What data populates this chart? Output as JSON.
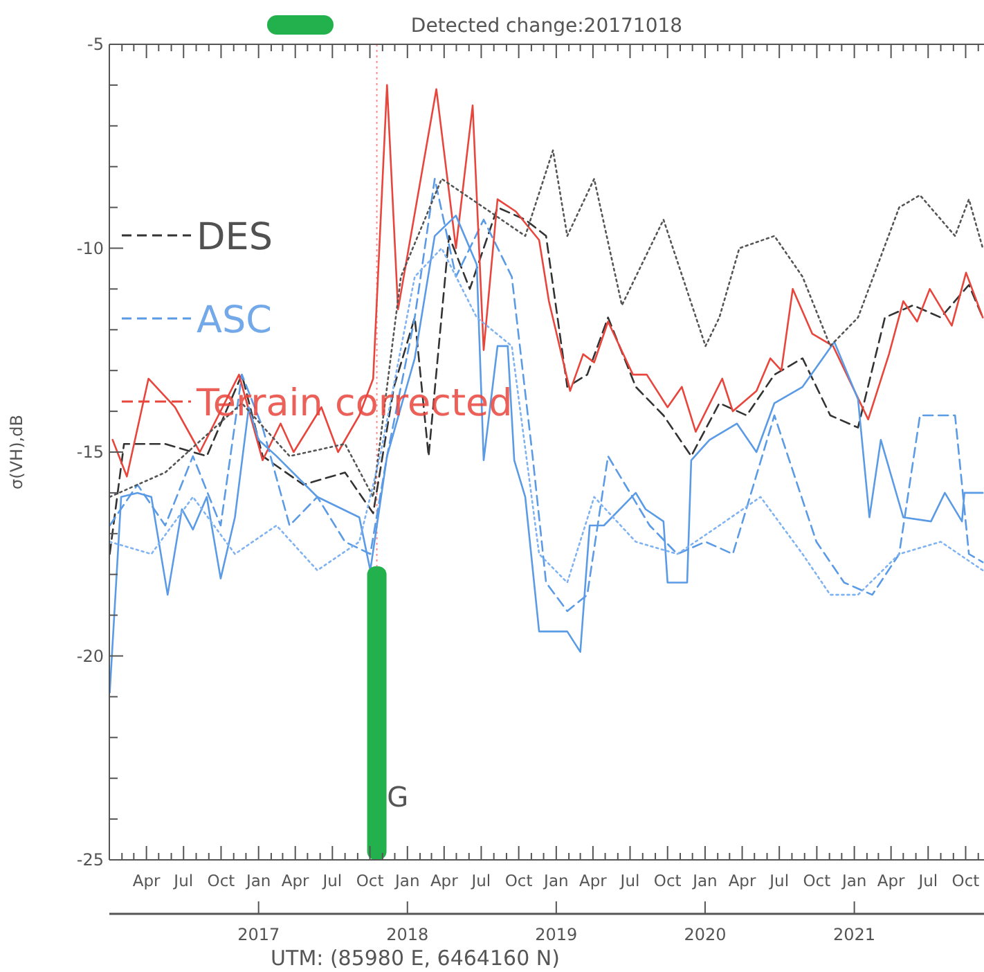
{
  "chart_data": {
    "type": "line",
    "title": "Detected change:20171018",
    "xlabel": "UTM: (85980 E, 6464160 N)",
    "ylabel": "σ(VH),dB",
    "legend": "left",
    "grid": false,
    "xlim": [
      "2016-01-01",
      "2021-11-15"
    ],
    "ylim": [
      -25,
      -5
    ],
    "yticks": [
      -25,
      {
        "value": -24,
        "label": null
      },
      {
        "value": -23,
        "label": null
      },
      {
        "value": -22,
        "label": null
      },
      {
        "value": -21,
        "label": null
      },
      -20,
      {
        "value": -19,
        "label": null
      },
      {
        "value": -18,
        "label": null
      },
      {
        "value": -17,
        "label": null
      },
      {
        "value": -16,
        "label": null
      },
      -15,
      {
        "value": -14,
        "label": null
      },
      {
        "value": -13,
        "label": null
      },
      {
        "value": -12,
        "label": null
      },
      {
        "value": -11,
        "label": null
      },
      -10,
      {
        "value": -9,
        "label": null
      },
      {
        "value": -8,
        "label": null
      },
      {
        "value": -7,
        "label": null
      },
      {
        "value": -6,
        "label": null
      },
      -5
    ],
    "xticks": [
      {
        "value": "2016-02-01",
        "label": null
      },
      {
        "value": "2016-03-01",
        "label": null
      },
      {
        "value": "2016-04-01",
        "label": "Apr"
      },
      {
        "value": "2016-05-01",
        "label": null
      },
      {
        "value": "2016-06-01",
        "label": null
      },
      {
        "value": "2016-07-01",
        "label": "Jul"
      },
      {
        "value": "2016-08-01",
        "label": null
      },
      {
        "value": "2016-09-01",
        "label": null
      },
      {
        "value": "2016-10-01",
        "label": "Oct"
      },
      {
        "value": "2016-11-01",
        "label": null
      },
      {
        "value": "2016-12-01",
        "label": null
      },
      {
        "value": "2017-01-01",
        "label": "Jan"
      },
      {
        "value": "2017-02-01",
        "label": null
      },
      {
        "value": "2017-03-01",
        "label": null
      },
      {
        "value": "2017-04-01",
        "label": "Apr"
      },
      {
        "value": "2017-05-01",
        "label": null
      },
      {
        "value": "2017-06-01",
        "label": null
      },
      {
        "value": "2017-07-01",
        "label": "Jul"
      },
      {
        "value": "2017-08-01",
        "label": null
      },
      {
        "value": "2017-09-01",
        "label": null
      },
      {
        "value": "2017-10-01",
        "label": "Oct"
      },
      {
        "value": "2017-11-01",
        "label": null
      },
      {
        "value": "2017-12-01",
        "label": null
      },
      {
        "value": "2018-01-01",
        "label": "Jan"
      },
      {
        "value": "2018-02-01",
        "label": null
      },
      {
        "value": "2018-03-01",
        "label": null
      },
      {
        "value": "2018-04-01",
        "label": "Apr"
      },
      {
        "value": "2018-05-01",
        "label": null
      },
      {
        "value": "2018-06-01",
        "label": null
      },
      {
        "value": "2018-07-01",
        "label": "Jul"
      },
      {
        "value": "2018-08-01",
        "label": null
      },
      {
        "value": "2018-09-01",
        "label": null
      },
      {
        "value": "2018-10-01",
        "label": "Oct"
      },
      {
        "value": "2018-11-01",
        "label": null
      },
      {
        "value": "2018-12-01",
        "label": null
      },
      {
        "value": "2019-01-01",
        "label": "Jan"
      },
      {
        "value": "2019-02-01",
        "label": null
      },
      {
        "value": "2019-03-01",
        "label": null
      },
      {
        "value": "2019-04-01",
        "label": "Apr"
      },
      {
        "value": "2019-05-01",
        "label": null
      },
      {
        "value": "2019-06-01",
        "label": null
      },
      {
        "value": "2019-07-01",
        "label": "Jul"
      },
      {
        "value": "2019-08-01",
        "label": null
      },
      {
        "value": "2019-09-01",
        "label": null
      },
      {
        "value": "2019-10-01",
        "label": "Oct"
      },
      {
        "value": "2019-11-01",
        "label": null
      },
      {
        "value": "2019-12-01",
        "label": null
      },
      {
        "value": "2020-01-01",
        "label": "Jan"
      },
      {
        "value": "2020-02-01",
        "label": null
      },
      {
        "value": "2020-03-01",
        "label": null
      },
      {
        "value": "2020-04-01",
        "label": "Apr"
      },
      {
        "value": "2020-05-01",
        "label": null
      },
      {
        "value": "2020-06-01",
        "label": null
      },
      {
        "value": "2020-07-01",
        "label": "Jul"
      },
      {
        "value": "2020-08-01",
        "label": null
      },
      {
        "value": "2020-09-01",
        "label": null
      },
      {
        "value": "2020-10-01",
        "label": "Oct"
      },
      {
        "value": "2020-11-01",
        "label": null
      },
      {
        "value": "2020-12-01",
        "label": null
      },
      {
        "value": "2021-01-01",
        "label": "Jan"
      },
      {
        "value": "2021-02-01",
        "label": null
      },
      {
        "value": "2021-03-01",
        "label": null
      },
      {
        "value": "2021-04-01",
        "label": "Apr"
      },
      {
        "value": "2021-05-01",
        "label": null
      },
      {
        "value": "2021-06-01",
        "label": null
      },
      {
        "value": "2021-07-01",
        "label": "Jul"
      },
      {
        "value": "2021-08-01",
        "label": null
      },
      {
        "value": "2021-09-01",
        "label": null
      },
      {
        "value": "2021-10-01",
        "label": "Oct"
      },
      {
        "value": "2021-11-01",
        "label": null
      }
    ],
    "x2lim": [
      "2016-01-01",
      "2021-11-15"
    ],
    "x2ticks": [
      {
        "value": "2017-01-01",
        "label": "2017"
      },
      {
        "value": "2018-01-01",
        "label": "2018"
      },
      {
        "value": "2019-01-01",
        "label": "2019"
      },
      {
        "value": "2020-01-01",
        "label": "2020"
      },
      {
        "value": "2021-01-01",
        "label": "2021"
      }
    ],
    "ref_lines": [
      {
        "axis": "x",
        "value": "2017-10-18",
        "color": "#ff8a8a",
        "line_style": "dotted"
      }
    ],
    "annotations": [
      {
        "text": "G",
        "x": "2017-11-12",
        "y": -23.5
      }
    ],
    "series": [
      {
        "name": "DES",
        "color": "#333333",
        "line_style": "dashed",
        "x": [
          "2016-01-02",
          "2016-02-06",
          "2016-05-17",
          "2016-08-27",
          "2016-11-21",
          "2017-01-11",
          "2017-04-21",
          "2017-08-01",
          "2017-10-09",
          "2017-11-29",
          "2018-01-19",
          "2018-02-22",
          "2018-04-13",
          "2018-06-03",
          "2018-08-10",
          "2018-10-17",
          "2018-12-07",
          "2019-01-28",
          "2019-03-18",
          "2019-05-08",
          "2019-07-15",
          "2019-09-21",
          "2019-11-28",
          "2020-02-05",
          "2020-04-12",
          "2020-06-19",
          "2020-08-27",
          "2020-11-03",
          "2021-01-10",
          "2021-03-17",
          "2021-05-25",
          "2021-08-01",
          "2021-10-09",
          "2021-11-12"
        ],
        "values": [
          -17.5,
          -14.8,
          -14.8,
          -15.1,
          -13.1,
          -15.1,
          -15.8,
          -15.5,
          -16.5,
          -13.4,
          -11.7,
          -15.1,
          -9.7,
          -11.0,
          -9.0,
          -9.3,
          -9.7,
          -13.4,
          -13.1,
          -11.7,
          -13.4,
          -14.1,
          -15.1,
          -13.8,
          -14.1,
          -13.1,
          -12.7,
          -14.1,
          -14.4,
          -11.7,
          -11.4,
          -11.7,
          -10.9,
          -11.7
        ]
      },
      {
        "name": "ASC",
        "color": "#5b9be6",
        "line_style": "dashed",
        "x": [
          "2016-01-02",
          "2016-03-10",
          "2016-05-17",
          "2016-07-24",
          "2016-09-30",
          "2016-11-21",
          "2017-01-11",
          "2017-03-18",
          "2017-05-25",
          "2017-08-01",
          "2017-10-02",
          "2017-11-12",
          "2018-01-19",
          "2018-03-09",
          "2018-04-30",
          "2018-07-07",
          "2018-09-14",
          "2018-11-04",
          "2018-12-07",
          "2019-01-28",
          "2019-03-18",
          "2019-05-08",
          "2019-08-18",
          "2019-10-25",
          "2020-01-02",
          "2020-03-09",
          "2020-06-19",
          "2020-09-30",
          "2020-12-07",
          "2021-02-14",
          "2021-04-21",
          "2021-06-11",
          "2021-09-05",
          "2021-10-09",
          "2021-11-12"
        ],
        "values": [
          -16.8,
          -15.8,
          -16.8,
          -15.1,
          -16.8,
          -13.1,
          -14.4,
          -16.8,
          -16.1,
          -17.2,
          -17.5,
          -15.1,
          -11.7,
          -8.3,
          -10.7,
          -9.3,
          -10.7,
          -15.1,
          -18.2,
          -18.9,
          -18.5,
          -15.1,
          -16.8,
          -17.5,
          -17.2,
          -17.5,
          -14.1,
          -17.2,
          -18.2,
          -18.5,
          -17.5,
          -14.1,
          -14.1,
          -17.5,
          -17.7
        ]
      },
      {
        "name": "Terrain corrected",
        "color": "#e8453c",
        "line_style": "solid",
        "x": [
          "2016-01-09",
          "2016-02-13",
          "2016-04-06",
          "2016-06-10",
          "2016-08-10",
          "2016-11-14",
          "2017-01-11",
          "2017-02-24",
          "2017-03-28",
          "2017-06-04",
          "2017-07-15",
          "2017-09-05",
          "2017-10-09",
          "2017-11-12",
          "2017-12-09",
          "2018-03-13",
          "2018-04-30",
          "2018-06-10",
          "2018-07-07",
          "2018-08-10",
          "2018-09-24",
          "2018-11-20",
          "2018-12-14",
          "2019-02-04",
          "2019-03-08",
          "2019-04-04",
          "2019-05-08",
          "2019-07-08",
          "2019-08-11",
          "2019-10-01",
          "2019-11-05",
          "2019-12-09",
          "2020-02-12",
          "2020-03-09",
          "2020-05-06",
          "2020-06-09",
          "2020-07-06",
          "2020-08-03",
          "2020-09-20",
          "2020-11-10",
          "2021-02-04",
          "2021-03-27",
          "2021-05-01",
          "2021-06-04",
          "2021-07-05",
          "2021-08-28",
          "2021-10-02",
          "2021-11-12"
        ],
        "values": [
          -14.7,
          -15.6,
          -13.2,
          -13.9,
          -15.0,
          -13.1,
          -15.2,
          -14.3,
          -15.0,
          -13.9,
          -15.0,
          -14.1,
          -13.2,
          -6.0,
          -11.5,
          -6.1,
          -10.0,
          -6.5,
          -12.5,
          -8.8,
          -9.1,
          -9.8,
          -11.3,
          -13.5,
          -12.6,
          -12.8,
          -11.8,
          -13.1,
          -13.1,
          -13.9,
          -13.4,
          -14.5,
          -13.2,
          -14.0,
          -13.5,
          -12.7,
          -13.0,
          -11.0,
          -12.1,
          -12.4,
          -14.2,
          -12.6,
          -11.3,
          -11.8,
          -11.0,
          -11.9,
          -10.6,
          -11.7
        ]
      },
      {
        "color": "#5b9be6",
        "line_style": "solid",
        "x": [
          "2016-01-02",
          "2016-01-30",
          "2016-03-10",
          "2016-04-13",
          "2016-05-23",
          "2016-06-27",
          "2016-07-24",
          "2016-08-27",
          "2016-09-30",
          "2016-11-04",
          "2016-12-08",
          "2017-01-01",
          "2017-02-14",
          "2017-05-25",
          "2017-09-05",
          "2017-10-02",
          "2017-11-12",
          "2018-01-19",
          "2018-03-09",
          "2018-04-30",
          "2018-06-20",
          "2018-07-07",
          "2018-08-10",
          "2018-09-04",
          "2018-09-20",
          "2018-10-17",
          "2018-11-20",
          "2019-01-28",
          "2019-03-01",
          "2019-03-24",
          "2019-04-28",
          "2019-07-15",
          "2019-08-08",
          "2019-09-21",
          "2019-10-01",
          "2019-11-18",
          "2019-11-28",
          "2020-01-12",
          "2020-03-19",
          "2020-05-06",
          "2020-06-19",
          "2020-08-27",
          "2020-11-13",
          "2021-01-10",
          "2021-02-07",
          "2021-03-07",
          "2021-05-01",
          "2021-07-08",
          "2021-08-11",
          "2021-09-22",
          "2021-09-28",
          "2021-11-12"
        ],
        "values": [
          -20.9,
          -16.1,
          -16.0,
          -16.1,
          -18.5,
          -16.4,
          -16.9,
          -16.1,
          -18.1,
          -16.6,
          -13.9,
          -14.7,
          -15.1,
          -16.1,
          -16.6,
          -17.9,
          -15.1,
          -12.7,
          -9.7,
          -9.2,
          -10.4,
          -15.2,
          -12.4,
          -12.4,
          -15.2,
          -16.1,
          -19.4,
          -19.4,
          -19.9,
          -16.8,
          -16.8,
          -16.0,
          -16.4,
          -16.7,
          -18.2,
          -18.2,
          -15.2,
          -14.7,
          -14.3,
          -15.0,
          -13.8,
          -13.4,
          -12.3,
          -13.7,
          -16.6,
          -14.7,
          -16.6,
          -16.7,
          -16.0,
          -16.7,
          -16.0,
          -16.0
        ]
      },
      {
        "color": "#555555",
        "line_style": "dotted",
        "x": [
          "2016-01-02",
          "2016-05-17",
          "2016-11-21",
          "2017-03-18",
          "2017-08-01",
          "2017-10-09",
          "2017-12-16",
          "2018-03-26",
          "2018-07-07",
          "2018-10-17",
          "2018-12-24",
          "2019-01-28",
          "2019-04-04",
          "2019-06-11",
          "2019-09-21",
          "2020-01-02",
          "2020-02-05",
          "2020-03-25",
          "2020-06-19",
          "2020-08-27",
          "2020-11-03",
          "2021-01-10",
          "2021-04-21",
          "2021-06-11",
          "2021-09-05",
          "2021-10-09",
          "2021-11-12"
        ],
        "values": [
          -16.1,
          -15.5,
          -13.8,
          -15.1,
          -14.8,
          -16.1,
          -10.7,
          -8.3,
          -9.0,
          -9.7,
          -7.6,
          -9.7,
          -8.3,
          -11.4,
          -9.3,
          -12.4,
          -11.7,
          -10.0,
          -9.7,
          -10.7,
          -12.4,
          -11.7,
          -9.0,
          -8.7,
          -9.7,
          -8.8,
          -10.0
        ]
      },
      {
        "color": "#7fb2f0",
        "line_style": "dotted",
        "x": [
          "2016-01-02",
          "2016-04-13",
          "2016-07-24",
          "2016-11-04",
          "2017-02-14",
          "2017-05-25",
          "2017-09-05",
          "2017-10-26",
          "2018-01-19",
          "2018-03-26",
          "2018-06-20",
          "2018-09-14",
          "2018-11-20",
          "2019-01-28",
          "2019-04-04",
          "2019-07-15",
          "2019-10-25",
          "2020-02-05",
          "2020-05-16",
          "2020-08-27",
          "2020-11-03",
          "2021-01-10",
          "2021-04-21",
          "2021-08-01",
          "2021-11-12"
        ],
        "values": [
          -17.2,
          -17.5,
          -16.1,
          -17.5,
          -16.8,
          -17.9,
          -17.2,
          -15.1,
          -10.7,
          -10.0,
          -11.7,
          -12.4,
          -17.5,
          -18.2,
          -16.1,
          -17.2,
          -17.5,
          -16.8,
          -16.1,
          -17.5,
          -18.5,
          -18.5,
          -17.5,
          -17.2,
          -17.9
        ]
      },
      {
        "type": "bar",
        "color": "#22b14c",
        "x": [
          "2017-10-18"
        ],
        "base": [
          -25
        ],
        "values": [
          7.2
        ]
      }
    ]
  }
}
